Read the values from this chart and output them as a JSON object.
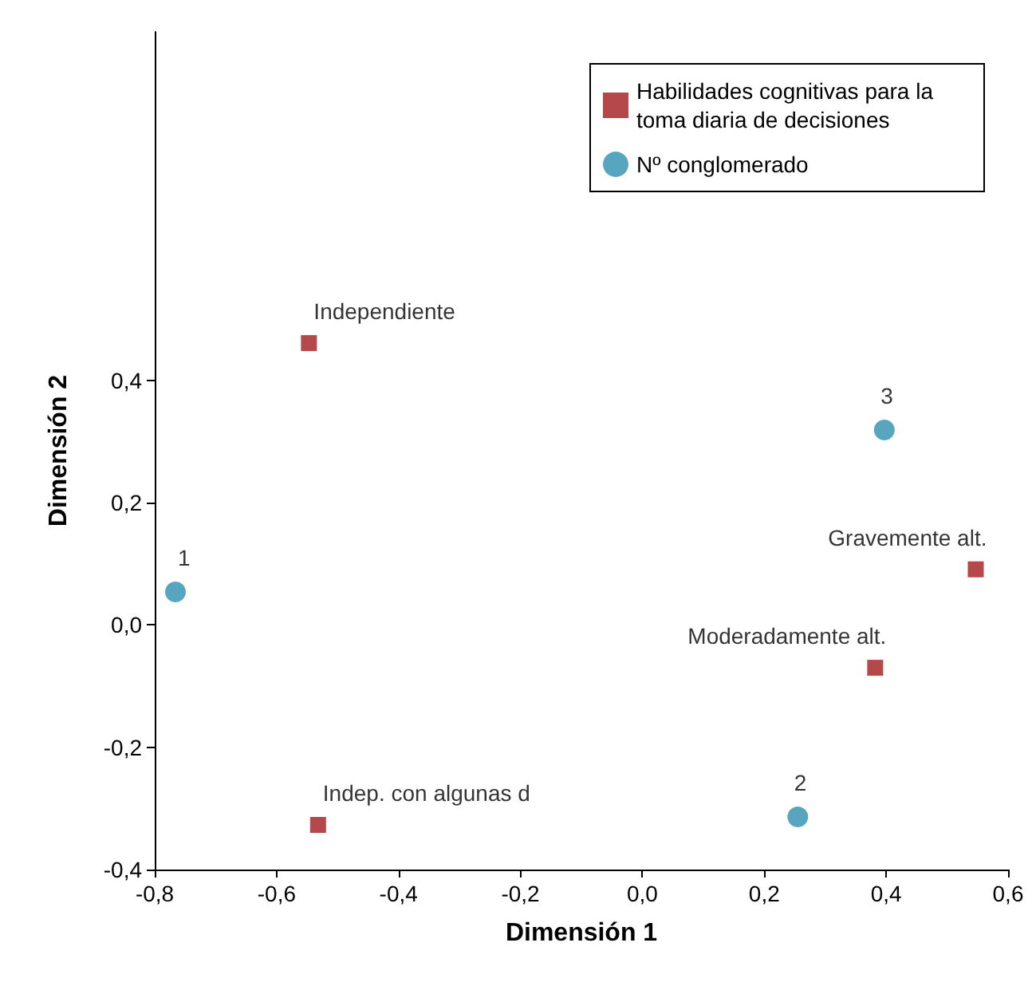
{
  "chart_data": {
    "type": "scatter",
    "xlabel": "Dimensión 1",
    "ylabel": "Dimensión 2",
    "series": [
      {
        "name": "Habilidades cognitivas para la toma diaria de decisiones",
        "color": "#a31a1e",
        "marker": "square",
        "x": [
          -0.547,
          0.547,
          0.382,
          -0.532
        ],
        "values": [
          0.461,
          0.091,
          -0.07,
          -0.327
        ]
      },
      {
        "name": "Nº conglomerado",
        "color": "#2e8fb0",
        "marker": "circle",
        "x": [
          -0.766,
          0.397,
          0.255
        ],
        "values": [
          0.054,
          0.319,
          -0.314
        ]
      }
    ],
    "annotations": [
      {
        "text": "Independiente",
        "x": -0.547,
        "y": 0.461
      },
      {
        "text": "Gravemente alt.",
        "x": 0.547,
        "y": 0.091
      },
      {
        "text": "Moderadamente alt.",
        "x": 0.382,
        "y": -0.07
      },
      {
        "text": "Indep. con algunas d",
        "x": -0.532,
        "y": -0.327
      },
      {
        "text": "1",
        "x": -0.766,
        "y": 0.054
      },
      {
        "text": "3",
        "x": 0.397,
        "y": 0.319
      },
      {
        "text": "2",
        "x": 0.255,
        "y": -0.314
      }
    ],
    "xlim": [
      -0.8,
      0.6
    ],
    "ylim": [
      -0.4,
      0.97
    ],
    "xticks": [
      {
        "value": -0.8,
        "label": "-0,8"
      },
      {
        "value": -0.6,
        "label": "-0,6"
      },
      {
        "value": -0.4,
        "label": "-0,4"
      },
      {
        "value": -0.2,
        "label": "-0,2"
      },
      {
        "value": 0,
        "label": "0,0"
      },
      {
        "value": 0.2,
        "label": "0,2"
      },
      {
        "value": 0.4,
        "label": "0,4"
      },
      {
        "value": 0.6,
        "label": "0,6"
      }
    ],
    "yticks": [
      {
        "value": -0.4,
        "label": "-0,4"
      },
      {
        "value": -0.2,
        "label": "-0,2"
      },
      {
        "value": 0,
        "label": "0,0"
      },
      {
        "value": 0.2,
        "label": "0,2"
      },
      {
        "value": 0.4,
        "label": "0,4"
      }
    ],
    "legend": "top right",
    "grid": false
  }
}
